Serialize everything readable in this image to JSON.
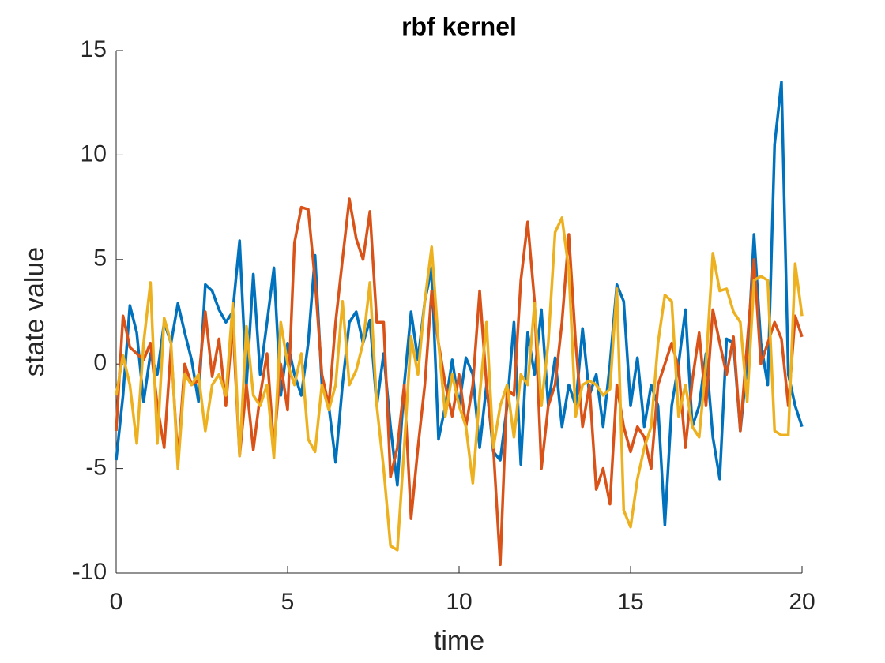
{
  "chart_data": {
    "type": "line",
    "title": "rbf kernel",
    "x_label": "time",
    "y_label": "state value",
    "x": [
      0,
      0.2,
      0.4,
      0.6,
      0.8,
      1,
      1.2,
      1.4,
      1.6,
      1.8,
      2,
      2.2,
      2.4,
      2.6,
      2.8,
      3,
      3.2,
      3.4,
      3.6,
      3.8,
      4,
      4.2,
      4.4,
      4.6,
      4.8,
      5,
      5.2,
      5.4,
      5.6,
      5.8,
      6,
      6.2,
      6.4,
      6.6,
      6.8,
      7,
      7.2,
      7.4,
      7.6,
      7.8,
      8,
      8.2,
      8.4,
      8.6,
      8.8,
      9,
      9.2,
      9.4,
      9.6,
      9.8,
      10,
      10.2,
      10.4,
      10.6,
      10.8,
      11,
      11.2,
      11.4,
      11.6,
      11.8,
      12,
      12.2,
      12.4,
      12.6,
      12.8,
      13,
      13.2,
      13.4,
      13.6,
      13.8,
      14,
      14.2,
      14.4,
      14.6,
      14.8,
      15,
      15.2,
      15.4,
      15.6,
      15.8,
      16,
      16.2,
      16.4,
      16.6,
      16.8,
      17,
      17.2,
      17.4,
      17.6,
      17.8,
      18,
      18.2,
      18.4,
      18.6,
      18.8,
      19,
      19.2,
      19.4,
      19.6,
      19.8,
      20
    ],
    "series": [
      {
        "color": "#0072BD",
        "values": [
          -4.6,
          -1.5,
          2.8,
          1.5,
          -1.8,
          0.5,
          -0.5,
          2.0,
          1.0,
          2.9,
          1.5,
          0.2,
          -1.8,
          3.8,
          3.5,
          2.6,
          2.0,
          2.5,
          5.9,
          -1.0,
          4.3,
          -0.5,
          2.0,
          4.6,
          -1.5,
          1.0,
          -0.5,
          -1.5,
          1.0,
          5.2,
          -1.0,
          -2.0,
          -4.7,
          -1.0,
          2.0,
          2.5,
          1.0,
          2.1,
          -2.0,
          0.5,
          -3.0,
          -5.8,
          -1.0,
          2.5,
          0.2,
          3.0,
          4.6,
          -3.6,
          -2.0,
          0.2,
          -2.0,
          0.3,
          -0.5,
          -4.0,
          -1.0,
          -4.2,
          -4.6,
          -2.0,
          2.0,
          -4.8,
          1.5,
          -0.5,
          2.6,
          -2.0,
          0.3,
          -3.0,
          -1.0,
          -2.0,
          1.7,
          -1.5,
          -0.5,
          -3.0,
          0.0,
          3.8,
          3.0,
          -2.0,
          0.3,
          -3.0,
          -1.0,
          -2.0,
          -7.7,
          -2.0,
          0.0,
          2.6,
          -3.0,
          -2.0,
          0.5,
          -3.5,
          -5.5,
          1.2,
          1.0,
          -3.2,
          0.0,
          6.2,
          1.0,
          -1.0,
          10.5,
          13.5,
          -0.5,
          -2.0,
          -3.0
        ]
      },
      {
        "color": "#D95319",
        "values": [
          -3.2,
          2.3,
          0.8,
          0.5,
          0.2,
          1.0,
          -2.0,
          -4.0,
          0.8,
          -4.6,
          0.0,
          -1.0,
          -0.8,
          2.5,
          -0.6,
          1.2,
          -2.0,
          2.0,
          -4.4,
          -1.0,
          -4.1,
          -1.5,
          0.5,
          -4.0,
          0.0,
          -2.2,
          5.8,
          7.5,
          7.4,
          4.0,
          -0.5,
          -2.0,
          2.0,
          5.0,
          7.9,
          6.0,
          5.0,
          7.3,
          2.0,
          2.0,
          -5.4,
          -4.0,
          -1.0,
          -7.4,
          -4.0,
          -1.0,
          3.5,
          1.0,
          -1.0,
          -2.5,
          -0.5,
          -3.0,
          -1.0,
          3.5,
          -1.0,
          -4.0,
          -9.6,
          -1.2,
          -1.5,
          4.0,
          6.8,
          3.0,
          -5.0,
          -2.0,
          -1.0,
          2.0,
          6.2,
          1.0,
          -3.0,
          -1.0,
          -6.0,
          -5.0,
          -6.7,
          -1.0,
          -3.0,
          -4.2,
          -3.0,
          -3.5,
          -5.0,
          -1.0,
          0.0,
          1.0,
          -0.2,
          -4.0,
          -0.8,
          1.5,
          -2.0,
          2.6,
          1.0,
          -0.5,
          1.3,
          -3.2,
          1.0,
          5.0,
          0.0,
          1.0,
          2.0,
          1.2,
          -2.0,
          2.3,
          1.3
        ]
      },
      {
        "color": "#EDB120",
        "values": [
          -1.5,
          0.4,
          -1.0,
          -3.8,
          1.0,
          3.9,
          -3.8,
          2.2,
          1.0,
          -5.0,
          -0.5,
          -1.0,
          -0.5,
          -3.2,
          -1.0,
          -0.5,
          -1.5,
          2.9,
          -4.4,
          1.8,
          -1.5,
          -2.0,
          -1.0,
          -4.5,
          2.0,
          0.0,
          -1.0,
          0.5,
          -3.6,
          -4.2,
          -1.0,
          -2.2,
          -1.0,
          3.0,
          -1.0,
          -0.3,
          1.0,
          3.9,
          -2.0,
          -5.0,
          -8.7,
          -8.9,
          -4.0,
          1.3,
          -0.5,
          3.0,
          5.6,
          1.0,
          -2.5,
          -0.5,
          -2.0,
          -3.0,
          -5.7,
          -1.5,
          2.0,
          -4.0,
          -2.0,
          -1.0,
          -3.5,
          -0.5,
          -1.0,
          2.9,
          -2.0,
          1.0,
          6.3,
          7.0,
          4.5,
          -2.5,
          -1.0,
          -0.8,
          -1.0,
          -1.5,
          -1.2,
          3.6,
          -7.0,
          -7.8,
          -5.5,
          -4.0,
          -3.0,
          1.0,
          3.3,
          3.0,
          -2.5,
          -1.0,
          -3.0,
          -3.5,
          0.0,
          5.3,
          3.5,
          3.6,
          2.5,
          2.0,
          -1.8,
          4.0,
          4.2,
          4.0,
          -3.2,
          -3.4,
          -3.4,
          4.8,
          2.3
        ]
      }
    ],
    "xlim": [
      0,
      20
    ],
    "xticks": [
      0,
      5,
      10,
      15,
      20
    ],
    "ylim": [
      -10,
      15
    ],
    "yticks": [
      -10,
      -5,
      0,
      5,
      10,
      15
    ]
  }
}
